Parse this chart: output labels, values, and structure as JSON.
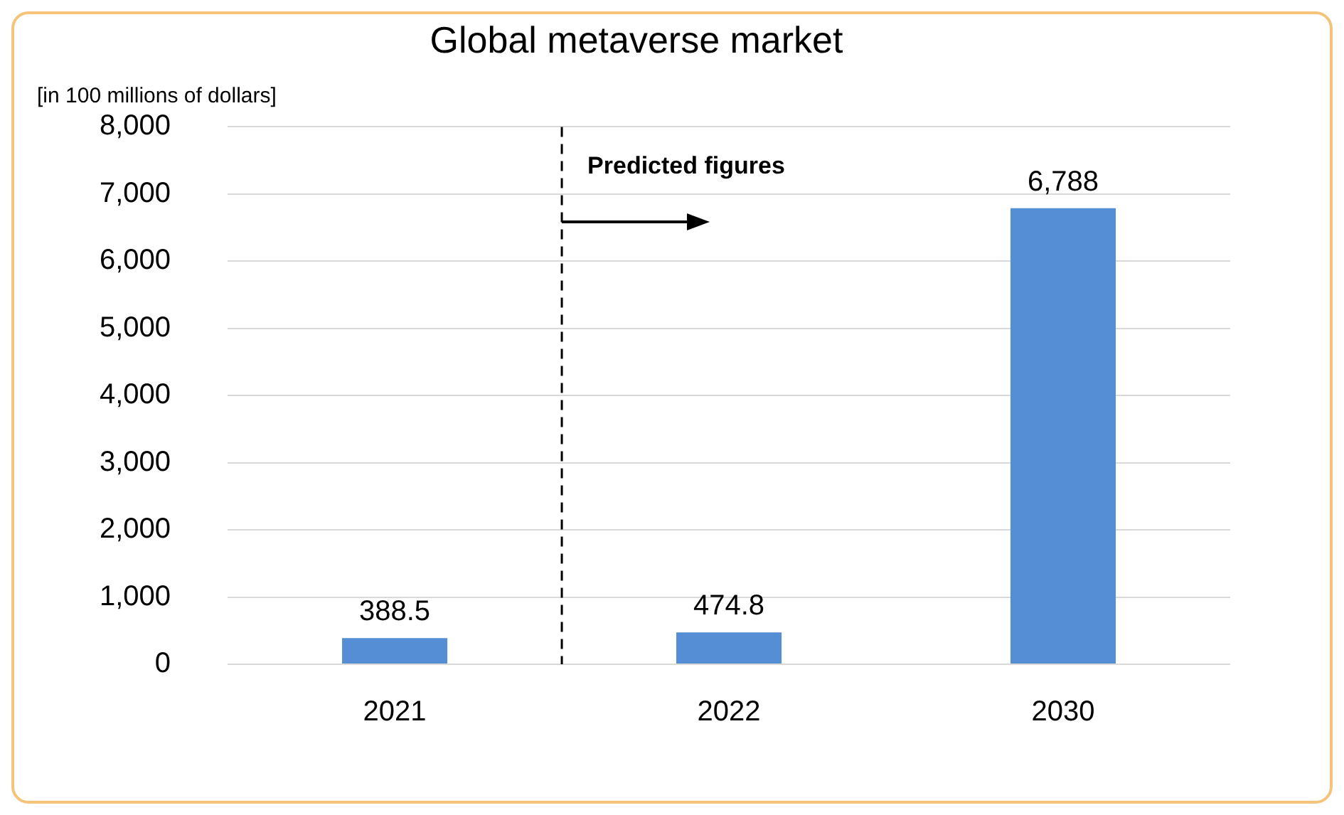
{
  "chart_data": {
    "type": "bar",
    "title": "Global metaverse market",
    "ylabel": "[in 100 millions of dollars]",
    "categories": [
      "2021",
      "2022",
      "2030"
    ],
    "values": [
      388.5,
      474.8,
      6788
    ],
    "value_labels": [
      "388.5",
      "474.8",
      "6,788"
    ],
    "color": "#558ed5",
    "ylim": [
      0,
      8000
    ],
    "yticks": [
      0,
      {
        "value": 1000,
        "label": "1,000"
      },
      {
        "value": 2000,
        "label": "2,000"
      },
      {
        "value": 3000,
        "label": "3,000"
      },
      {
        "value": 4000,
        "label": "4,000"
      },
      {
        "value": 5000,
        "label": "5,000"
      },
      {
        "value": 6000,
        "label": "6,000"
      },
      {
        "value": 7000,
        "label": "7,000"
      },
      {
        "value": 8000,
        "label": "8,000"
      }
    ],
    "grid": "y",
    "legend": false,
    "ref_lines": [
      {
        "axis": "x",
        "value": "2022",
        "label": "Predicted figures",
        "color": "#000000",
        "line_style": "dashed"
      }
    ]
  }
}
